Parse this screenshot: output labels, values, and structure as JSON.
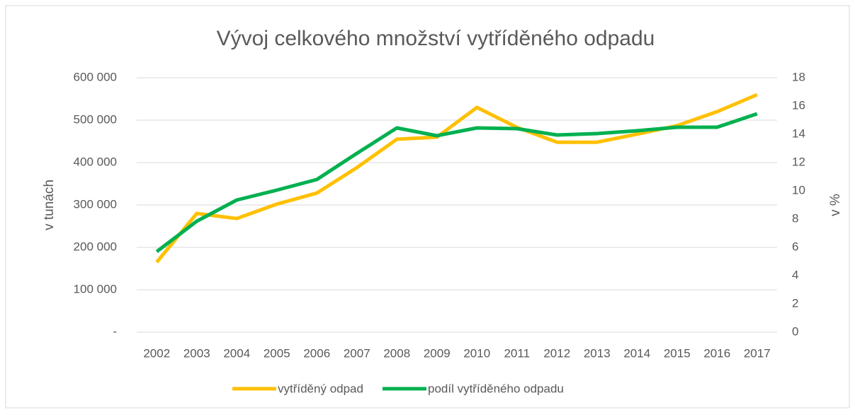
{
  "chart_data": {
    "type": "line",
    "title": "Vývoj celkového množství vytříděného odpadu",
    "ylabel": "v tunách",
    "y2label": "v %",
    "categories": [
      "2002",
      "2003",
      "2004",
      "2005",
      "2006",
      "2007",
      "2008",
      "2009",
      "2010",
      "2011",
      "2012",
      "2013",
      "2014",
      "2015",
      "2016",
      "2017"
    ],
    "series": [
      {
        "name": "vytříděný odpad",
        "color": "#ffc000",
        "values": [
          165000,
          280000,
          268000,
          302000,
          328000,
          388000,
          455000,
          460000,
          530000,
          483000,
          448000,
          448000,
          467000,
          487000,
          520000,
          560000
        ]
      },
      {
        "name": "podíl vytříděného odpadu",
        "color": "#00b050",
        "axis": "y2",
        "values": [
          5.7,
          7.85,
          9.35,
          10.05,
          10.8,
          12.65,
          14.45,
          13.9,
          14.45,
          14.4,
          13.95,
          14.05,
          14.25,
          14.5,
          14.5,
          15.45
        ]
      }
    ],
    "ylim": [
      0,
      600000
    ],
    "yticks": [
      {
        "value": 0,
        "label": "-"
      },
      {
        "value": 100000,
        "label": "100 000"
      },
      {
        "value": 200000,
        "label": "200 000"
      },
      {
        "value": 300000,
        "label": "300 000"
      },
      {
        "value": 400000,
        "label": "400 000"
      },
      {
        "value": 500000,
        "label": "500 000"
      },
      {
        "value": 600000,
        "label": "600 000"
      }
    ],
    "y2lim": [
      0,
      18
    ],
    "y2ticks": [
      0,
      2,
      4,
      6,
      8,
      10,
      12,
      14,
      16,
      18
    ],
    "grid": true,
    "legend": "bottom"
  }
}
